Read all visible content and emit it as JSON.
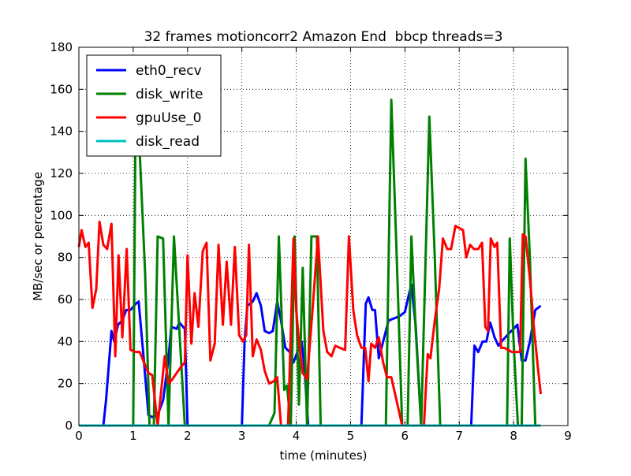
{
  "chart_data": {
    "type": "line",
    "title": "32 frames motioncorr2 Amazon End  bbcp threads=3",
    "x_label": "time (minutes)",
    "y_label": "MB/sec or percentage",
    "xlim": [
      0,
      9
    ],
    "xticks": [
      0,
      1,
      2,
      3,
      4,
      5,
      6,
      7,
      8,
      9
    ],
    "ylim": [
      0,
      180
    ],
    "yticks": [
      0,
      20,
      40,
      60,
      80,
      100,
      120,
      140,
      160,
      180
    ],
    "grid": true,
    "legend": "upper left",
    "series": [
      {
        "name": "eth0_recv",
        "color": "#0000ff",
        "x": [
          0,
          0.45,
          0.5,
          0.6,
          0.65,
          0.72,
          0.8,
          0.87,
          0.95,
          1.05,
          1.1,
          1.2,
          1.28,
          1.35,
          1.45,
          1.55,
          1.65,
          1.7,
          1.8,
          1.85,
          1.95,
          2.0,
          3.0,
          3.05,
          3.1,
          3.2,
          3.27,
          3.35,
          3.42,
          3.5,
          3.57,
          3.65,
          3.72,
          3.8,
          3.88,
          3.95,
          4.05,
          4.1,
          4.15,
          4.22,
          5.2,
          5.28,
          5.33,
          5.4,
          5.45,
          5.52,
          5.6,
          5.7,
          5.8,
          5.9,
          6.0,
          6.07,
          6.12,
          6.2,
          6.3,
          7.22,
          7.28,
          7.35,
          7.43,
          7.5,
          7.57,
          7.65,
          7.72,
          7.78,
          7.85,
          7.92,
          8.0,
          8.07,
          8.15,
          8.22,
          8.3,
          8.4,
          8.5
        ],
        "values": [
          0,
          0,
          12,
          45,
          40,
          48,
          50,
          55,
          55,
          58,
          59,
          30,
          5,
          4,
          5,
          12,
          32,
          47,
          46,
          49,
          46,
          0,
          0,
          40,
          57,
          59,
          63,
          57,
          45,
          44,
          45,
          59,
          50,
          37,
          35,
          30,
          37,
          40,
          28,
          0,
          0,
          58,
          61,
          55,
          55,
          32,
          40,
          50,
          51,
          52,
          54,
          62,
          67,
          47,
          0,
          0,
          38,
          35,
          40,
          40,
          49,
          42,
          38,
          40,
          42,
          44,
          46,
          48,
          31,
          31,
          40,
          55,
          57
        ]
      },
      {
        "name": "disk_write",
        "color": "#008000",
        "x": [
          0,
          1.0,
          1.05,
          1.12,
          1.22,
          1.3,
          1.38,
          1.45,
          1.55,
          1.65,
          1.75,
          1.85,
          1.95,
          3.5,
          3.6,
          3.68,
          3.78,
          3.83,
          3.9,
          3.97,
          4.05,
          4.12,
          4.2,
          4.28,
          4.38,
          4.45,
          5.65,
          5.75,
          5.85,
          5.95,
          6.05,
          6.12,
          6.2,
          6.3,
          6.45,
          6.55,
          6.65,
          7.88,
          7.93,
          8.0,
          8.08,
          8.15,
          8.22,
          8.3,
          8.4,
          8.5
        ],
        "values": [
          0,
          0,
          172,
          130,
          72,
          0,
          0,
          90,
          89,
          0,
          90,
          45,
          0,
          0,
          6,
          90,
          17,
          19,
          0,
          90,
          10,
          75,
          0,
          90,
          90,
          0,
          0,
          155,
          80,
          0,
          0,
          90,
          45,
          0,
          147,
          80,
          0,
          0,
          89,
          40,
          0,
          0,
          127,
          80,
          0,
          0
        ]
      },
      {
        "name": "gpuUse_0",
        "color": "#ff0000",
        "x": [
          0,
          0.05,
          0.12,
          0.18,
          0.25,
          0.32,
          0.38,
          0.45,
          0.52,
          0.6,
          0.67,
          0.73,
          0.8,
          0.88,
          0.95,
          1.05,
          1.12,
          1.2,
          1.28,
          1.35,
          1.45,
          1.58,
          1.65,
          1.72,
          1.8,
          1.88,
          1.95,
          2.0,
          2.07,
          2.13,
          2.2,
          2.28,
          2.35,
          2.42,
          2.5,
          2.57,
          2.65,
          2.72,
          2.8,
          2.87,
          2.95,
          3.02,
          3.08,
          3.13,
          3.2,
          3.27,
          3.35,
          3.42,
          3.5,
          3.58,
          3.65,
          3.72,
          3.85,
          3.95,
          4.0,
          4.05,
          4.12,
          4.2,
          4.3,
          4.4,
          4.5,
          4.57,
          4.65,
          4.72,
          4.8,
          4.9,
          4.97,
          5.05,
          5.12,
          5.2,
          5.27,
          5.33,
          5.38,
          5.45,
          5.52,
          5.6,
          5.67,
          5.75,
          5.82,
          5.95,
          6.35,
          6.42,
          6.47,
          6.55,
          6.63,
          6.7,
          6.78,
          6.85,
          6.93,
          7.0,
          7.07,
          7.13,
          7.2,
          7.27,
          7.35,
          7.42,
          7.48,
          7.53,
          7.58,
          7.65,
          7.7,
          7.77,
          7.83,
          7.9,
          7.97,
          8.05,
          8.12,
          8.17,
          8.22,
          8.3,
          8.38,
          8.45,
          8.5
        ],
        "values": [
          85,
          93,
          85,
          87,
          56,
          65,
          97,
          86,
          84,
          96,
          33,
          81,
          42,
          84,
          36,
          35,
          35,
          30,
          25,
          24,
          0,
          33,
          20,
          22,
          25,
          28,
          30,
          81,
          39,
          63,
          47,
          83,
          87,
          31,
          39,
          86,
          48,
          78,
          48,
          85,
          43,
          40,
          43,
          86,
          33,
          41,
          36,
          26,
          20,
          21,
          23,
          0,
          0,
          89,
          55,
          40,
          25,
          22,
          55,
          90,
          45,
          35,
          33,
          38,
          37,
          36,
          90,
          55,
          43,
          37,
          37,
          21,
          39,
          37,
          42,
          30,
          23,
          23,
          15,
          0,
          0,
          34,
          32,
          50,
          65,
          89,
          84,
          84,
          95,
          94,
          93,
          80,
          86,
          84,
          84,
          87,
          47,
          45,
          89,
          85,
          87,
          37,
          37,
          36,
          35,
          35,
          35,
          91,
          90,
          70,
          45,
          27,
          15
        ]
      },
      {
        "name": "disk_read",
        "color": "#00bfbf",
        "x": [
          0,
          8.5
        ],
        "values": [
          0,
          0
        ]
      }
    ]
  }
}
